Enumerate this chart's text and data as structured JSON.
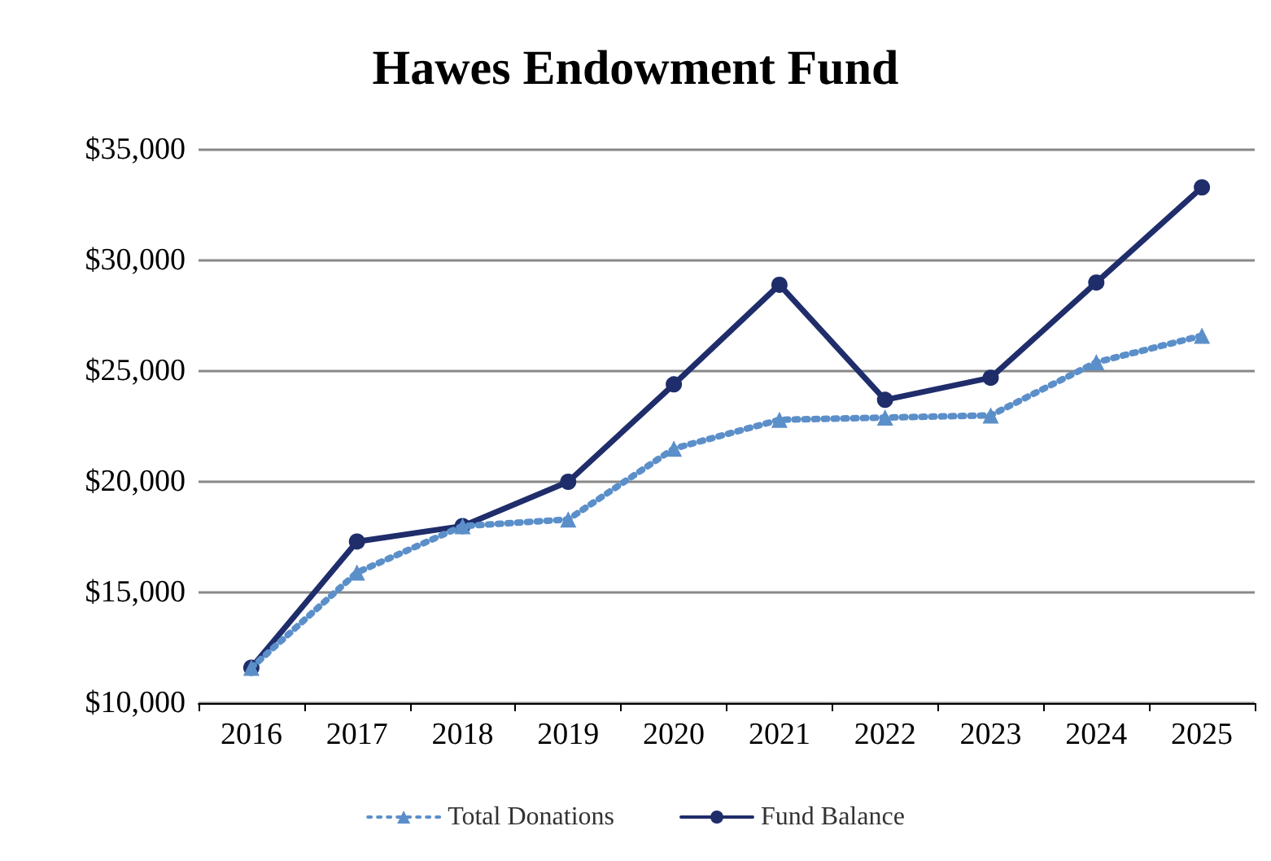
{
  "chart_data": {
    "type": "line",
    "title": "Hawes Endowment Fund",
    "categories": [
      "2016",
      "2017",
      "2018",
      "2019",
      "2020",
      "2021",
      "2022",
      "2023",
      "2024",
      "2025"
    ],
    "series": [
      {
        "name": "Total Donations",
        "color": "#5b8fc9",
        "marker": "triangle",
        "line_style": "dotted",
        "values": [
          11600,
          15900,
          18000,
          18300,
          21500,
          22800,
          22900,
          23000,
          25400,
          26600
        ]
      },
      {
        "name": "Fund Balance",
        "color": "#1f2d6b",
        "marker": "circle",
        "line_style": "solid",
        "values": [
          11600,
          17300,
          18000,
          20000,
          24400,
          28900,
          23700,
          24700,
          29000,
          33300
        ]
      }
    ],
    "ylim": [
      10000,
      35000
    ],
    "yticks": [
      {
        "value": 10000,
        "label": "$10,000"
      },
      {
        "value": 15000,
        "label": "$15,000"
      },
      {
        "value": 20000,
        "label": "$20,000"
      },
      {
        "value": 25000,
        "label": "$25,000"
      },
      {
        "value": 30000,
        "label": "$30,000"
      },
      {
        "value": 35000,
        "label": "$35,000"
      }
    ],
    "grid": "y",
    "legend": "bottom"
  }
}
